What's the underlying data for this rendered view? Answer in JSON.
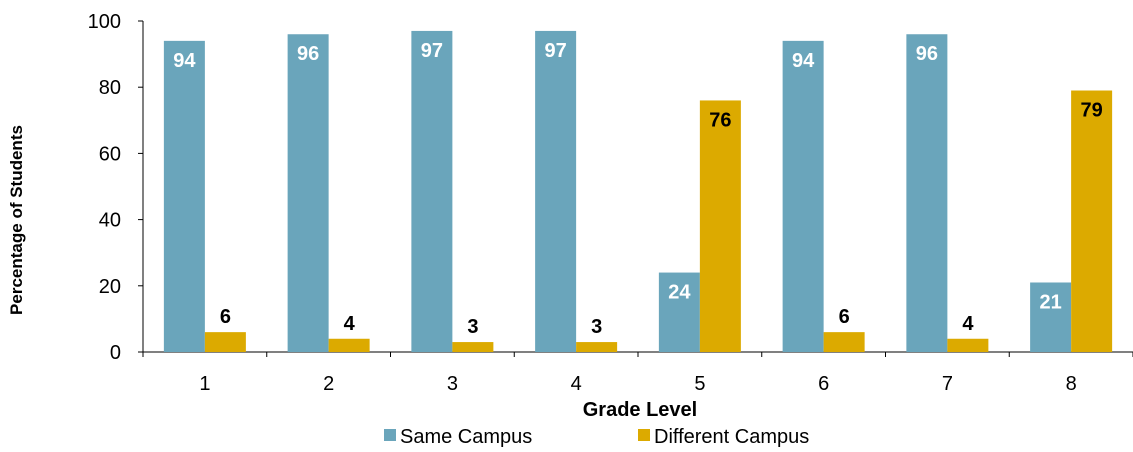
{
  "chart_data": {
    "type": "bar",
    "title": "",
    "xlabel": "Grade Level",
    "ylabel": "Percentage of Students",
    "categories": [
      "1",
      "2",
      "3",
      "4",
      "5",
      "6",
      "7",
      "8"
    ],
    "series": [
      {
        "name": "Same Campus",
        "color": "#6aa5bb",
        "label_color": "#ffffff",
        "values": [
          94,
          96,
          97,
          97,
          24,
          94,
          96,
          21
        ]
      },
      {
        "name": "Different Campus",
        "color": "#dcaa00",
        "label_color": "#000000",
        "values": [
          6,
          4,
          3,
          3,
          76,
          6,
          4,
          79
        ]
      }
    ],
    "ylim": [
      0,
      100
    ],
    "yticks": [
      "0",
      "20",
      "40",
      "60",
      "80",
      "100"
    ],
    "grid": false,
    "legend": "bottom"
  }
}
